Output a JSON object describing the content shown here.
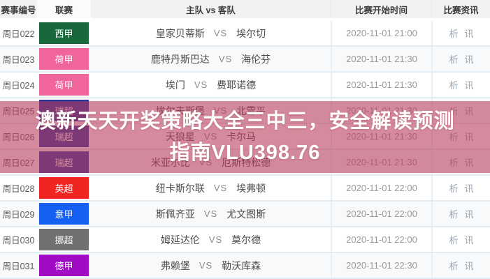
{
  "header": {
    "match_id": "赛事编号",
    "league": "联赛",
    "teams": "主队 vs 客队",
    "time": "比赛开始时间",
    "info": "比赛资讯"
  },
  "labels": {
    "vs": "VS",
    "links": {
      "analysis": "析",
      "news": "讯"
    }
  },
  "overlay": {
    "line1": "澳新天天开奖策略大全三中三，安全解读预测",
    "line2": "指南VLU398.76"
  },
  "colors": {
    "overlay_bg": "rgba(185,62,92,0.6)",
    "la_liga": "#17693b",
    "eredivisie": "#f0659c",
    "allsvenskan": "#22339b",
    "premier_league": "#f02420",
    "serie_a": "#155ff2",
    "eliteserien": "#707072",
    "bundesliga": "#a00cc4"
  },
  "table": {
    "rows": [
      {
        "id": "周日022",
        "league": "西甲",
        "color": "#17693b",
        "home": "皇家贝蒂斯",
        "away": "埃尔切",
        "time": "2020-11-01 21:00"
      },
      {
        "id": "周日023",
        "league": "荷甲",
        "color": "#f0659c",
        "home": "鹿特丹斯巴达",
        "away": "海伦芬",
        "time": "2020-11-01 21:30"
      },
      {
        "id": "周日024",
        "league": "荷甲",
        "color": "#f0659c",
        "home": "埃门",
        "away": "费耶诺德",
        "time": "2020-11-01 21:30"
      },
      {
        "id": "周日025",
        "league": "瑞超",
        "color": "#22339b",
        "home": "埃尔夫斯堡",
        "away": "北雪平",
        "time": "2020-11-01 21:30"
      },
      {
        "id": "周日026",
        "league": "瑞超",
        "color": "#22339b",
        "home": "天狼星",
        "away": "卡尔马",
        "time": "2020-11-01 21:30"
      },
      {
        "id": "周日027",
        "league": "瑞超",
        "color": "#22339b",
        "home": "米亚尔比",
        "away": "厄斯特松德",
        "time": "2020-11-01 21:30"
      },
      {
        "id": "周日028",
        "league": "英超",
        "color": "#f02420",
        "home": "纽卡斯尔联",
        "away": "埃弗顿",
        "time": "2020-11-01 22:00"
      },
      {
        "id": "周日029",
        "league": "意甲",
        "color": "#155ff2",
        "home": "斯佩齐亚",
        "away": "尤文图斯",
        "time": "2020-11-01 22:00"
      },
      {
        "id": "周日030",
        "league": "挪超",
        "color": "#707072",
        "home": "姆延达伦",
        "away": "莫尔德",
        "time": "2020-11-01 22:00"
      },
      {
        "id": "周日031",
        "league": "德甲",
        "color": "#a00cc4",
        "home": "弗赖堡",
        "away": "勒沃库森",
        "time": "2020-11-01 22:30"
      }
    ]
  }
}
